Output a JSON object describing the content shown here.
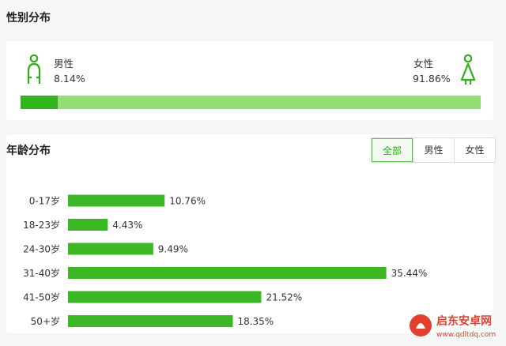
{
  "gender": {
    "title": "性别分布",
    "male_label": "男性",
    "male_value": "8.14%",
    "female_label": "女性",
    "female_value": "91.86%",
    "male_share": 8.14,
    "female_share": 91.86,
    "colors": {
      "male_bar": "#32b41e",
      "female_bar": "#94dc74",
      "icon": "#2fae1a"
    },
    "icons": {
      "male": "male-person-icon",
      "female": "female-person-icon"
    }
  },
  "age": {
    "title": "年龄分布",
    "tabs": [
      {
        "label": "全部",
        "active": true
      },
      {
        "label": "男性",
        "active": false
      },
      {
        "label": "女性",
        "active": false
      }
    ]
  },
  "chart_data": {
    "type": "bar",
    "orientation": "horizontal",
    "categories": [
      "0-17岁",
      "18-23岁",
      "24-30岁",
      "31-40岁",
      "41-50岁",
      "50+岁"
    ],
    "values": [
      10.76,
      4.43,
      9.49,
      35.44,
      21.52,
      18.35
    ],
    "value_labels": [
      "10.76%",
      "4.43%",
      "9.49%",
      "35.44%",
      "21.52%",
      "18.35%"
    ],
    "title": "年龄分布",
    "xlabel": "",
    "ylabel": "",
    "grid": false,
    "bar_color": "#3cb824"
  },
  "watermark": {
    "text": "启东安卓网",
    "url_text": "www.qdltdq.com"
  }
}
